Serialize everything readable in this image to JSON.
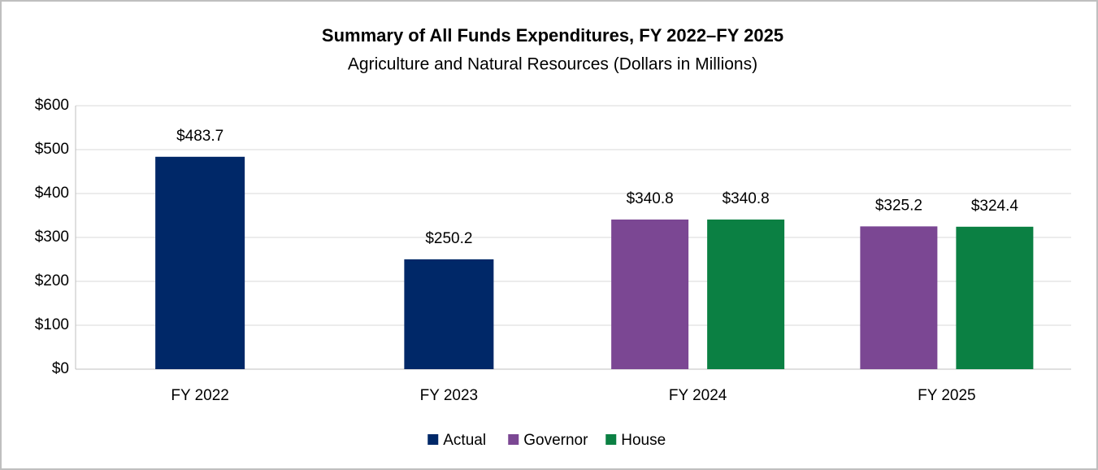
{
  "chart_data": {
    "type": "bar",
    "title": "Summary of All Funds Expenditures, FY 2022–FY 2025",
    "subtitle": "Agriculture and Natural Resources (Dollars in Millions)",
    "categories": [
      "FY 2022",
      "FY 2023",
      "FY 2024",
      "FY 2025"
    ],
    "series": [
      {
        "name": "Actual",
        "color": "#002868",
        "values": [
          483.7,
          250.2,
          null,
          null
        ],
        "value_labels": [
          "$483.7",
          "$250.2",
          null,
          null
        ]
      },
      {
        "name": "Governor",
        "color": "#7b4793",
        "values": [
          null,
          null,
          340.8,
          325.2
        ],
        "value_labels": [
          null,
          null,
          "$340.8",
          "$325.2"
        ]
      },
      {
        "name": "House",
        "color": "#0b8043",
        "values": [
          null,
          null,
          340.8,
          324.4
        ],
        "value_labels": [
          null,
          null,
          "$340.8",
          "$324.4"
        ]
      }
    ],
    "ylim": [
      0,
      600
    ],
    "yticks": [
      {
        "value": 0,
        "label": "$0"
      },
      {
        "value": 100,
        "label": "$100"
      },
      {
        "value": 200,
        "label": "$200"
      },
      {
        "value": 300,
        "label": "$300"
      },
      {
        "value": 400,
        "label": "$400"
      },
      {
        "value": 500,
        "label": "$500"
      },
      {
        "value": 600,
        "label": "$600"
      }
    ],
    "grid": true,
    "legend": "bottom"
  }
}
